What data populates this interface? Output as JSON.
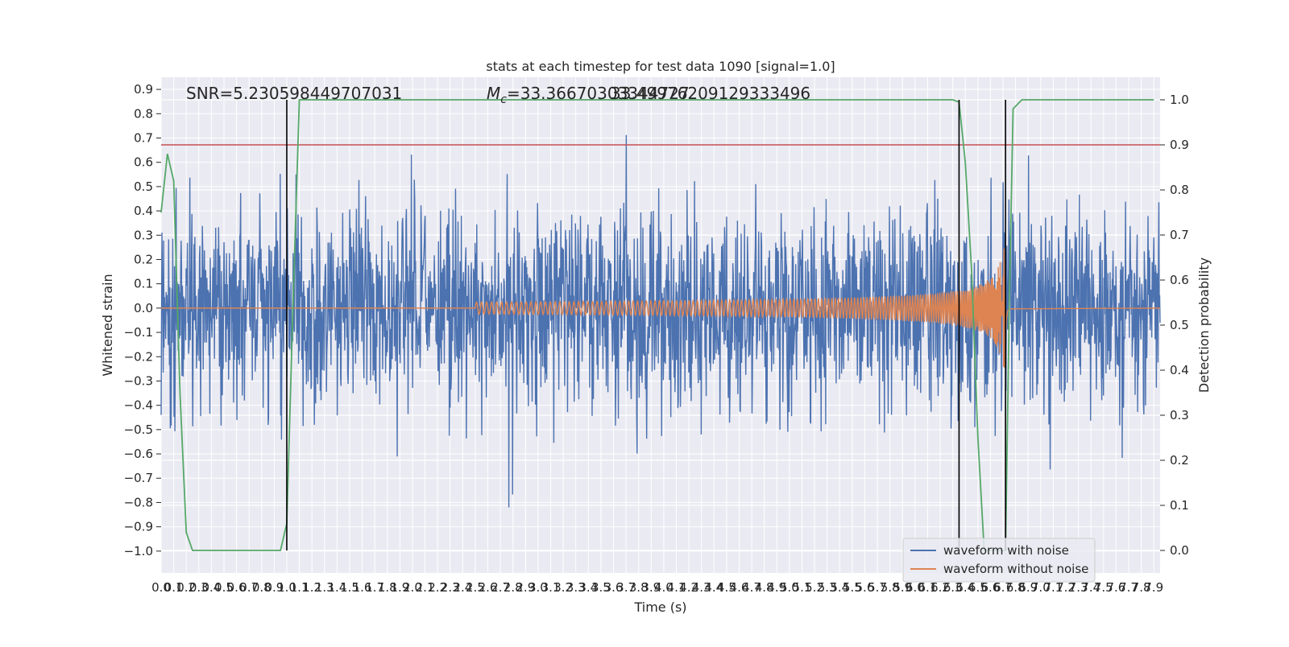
{
  "chart_data": {
    "type": "line",
    "title": "stats at each timestep for test data 1090 [signal=1.0]",
    "xlabel": "Time (s)",
    "ylabel": "Whitened strain",
    "ylabel_right": "Detection probability",
    "xlim": [
      0.0,
      7.95
    ],
    "ylim": [
      -1.09,
      0.95
    ],
    "ylim_right": [
      -0.05,
      1.05
    ],
    "x_ticks": [
      "0.0",
      "0.1",
      "0.2",
      "0.3",
      "0.4",
      "0.5",
      "0.6",
      "0.7",
      "0.8",
      "0.9",
      "1.0",
      "1.1",
      "1.2",
      "1.3",
      "1.4",
      "1.5",
      "1.6",
      "1.7",
      "1.8",
      "1.9",
      "2.0",
      "2.1",
      "2.2",
      "2.3",
      "2.4",
      "2.5",
      "2.6",
      "2.7",
      "2.8",
      "2.9",
      "3.0",
      "3.1",
      "3.2",
      "3.3",
      "3.4",
      "3.5",
      "3.6",
      "3.7",
      "3.8",
      "3.9",
      "4.0",
      "4.1",
      "4.2",
      "4.3",
      "4.4",
      "4.5",
      "4.6",
      "4.7",
      "4.8",
      "4.9",
      "5.0",
      "5.1",
      "5.2",
      "5.3",
      "5.4",
      "5.5",
      "5.6",
      "5.7",
      "5.8",
      "5.9",
      "6.0",
      "6.1",
      "6.2",
      "6.3",
      "6.4",
      "6.5",
      "6.6",
      "6.7",
      "6.8",
      "6.9",
      "7.0",
      "7.1",
      "7.2",
      "7.3",
      "7.4",
      "7.5",
      "7.6",
      "7.7",
      "7.8",
      "7.9"
    ],
    "y_ticks": [
      "0.9",
      "0.8",
      "0.7",
      "0.6",
      "0.5",
      "0.4",
      "0.3",
      "0.2",
      "0.1",
      "0.0",
      "−0.1",
      "−0.2",
      "−0.3",
      "−0.4",
      "−0.5",
      "−0.6",
      "−0.7",
      "−0.8",
      "−0.9",
      "−1.0"
    ],
    "y_ticks_right": [
      "1.0",
      "0.9",
      "0.8",
      "0.7",
      "0.6",
      "0.5",
      "0.4",
      "0.3",
      "0.2",
      "0.1",
      "0.0"
    ],
    "annotations": {
      "snr": "SNR=5.230598449707031",
      "mc_prefix": "M",
      "mc_sub": "c",
      "mc_value": "=33.36670303344727",
      "overlap": "33.49976209129333496"
    },
    "legend": {
      "position": "lower-right",
      "entries": [
        {
          "label": "waveform with noise",
          "color": "#4c72b0"
        },
        {
          "label": "waveform without noise",
          "color": "#dd8452"
        }
      ]
    },
    "threshold": {
      "value": 0.9,
      "color": "#c44e52"
    },
    "vertical_markers": [
      1.0,
      6.35,
      6.72
    ],
    "noise_envelope": {
      "max_abs": 1.0
    },
    "detection_probability": {
      "color": "#55a868",
      "x": [
        0.0,
        0.05,
        0.1,
        0.15,
        0.2,
        0.25,
        0.3,
        0.35,
        0.4,
        0.5,
        0.6,
        0.7,
        0.8,
        0.9,
        0.95,
        1.0,
        1.05,
        1.1,
        1.2,
        1.5,
        2.0,
        3.0,
        4.0,
        5.0,
        6.0,
        6.3,
        6.35,
        6.4,
        6.45,
        6.5,
        6.55,
        6.6,
        6.65,
        6.7,
        6.72,
        6.75,
        6.78,
        6.85,
        6.9,
        7.0,
        7.5,
        7.9
      ],
      "y": [
        0.75,
        0.88,
        0.82,
        0.35,
        0.04,
        0.0,
        0.0,
        0.0,
        0.0,
        0.0,
        0.0,
        0.0,
        0.0,
        0.0,
        0.0,
        0.06,
        0.55,
        1.0,
        1.0,
        1.0,
        1.0,
        1.0,
        1.0,
        1.0,
        1.0,
        1.0,
        0.995,
        0.86,
        0.62,
        0.25,
        0.0,
        0.0,
        0.0,
        0.0,
        0.0,
        0.55,
        0.98,
        1.0,
        1.0,
        1.0,
        1.0,
        1.0
      ]
    },
    "chirp": {
      "color": "#dd8452",
      "x_start": 2.5,
      "x_merger": 6.72,
      "x_end": 6.75,
      "peak_amplitude": 0.27,
      "inspiral_amplitude": 0.025
    },
    "colors": {
      "background": "#eaeaf2",
      "grid": "#ffffff",
      "noise": "#4c72b0",
      "marker": "#000000"
    }
  }
}
